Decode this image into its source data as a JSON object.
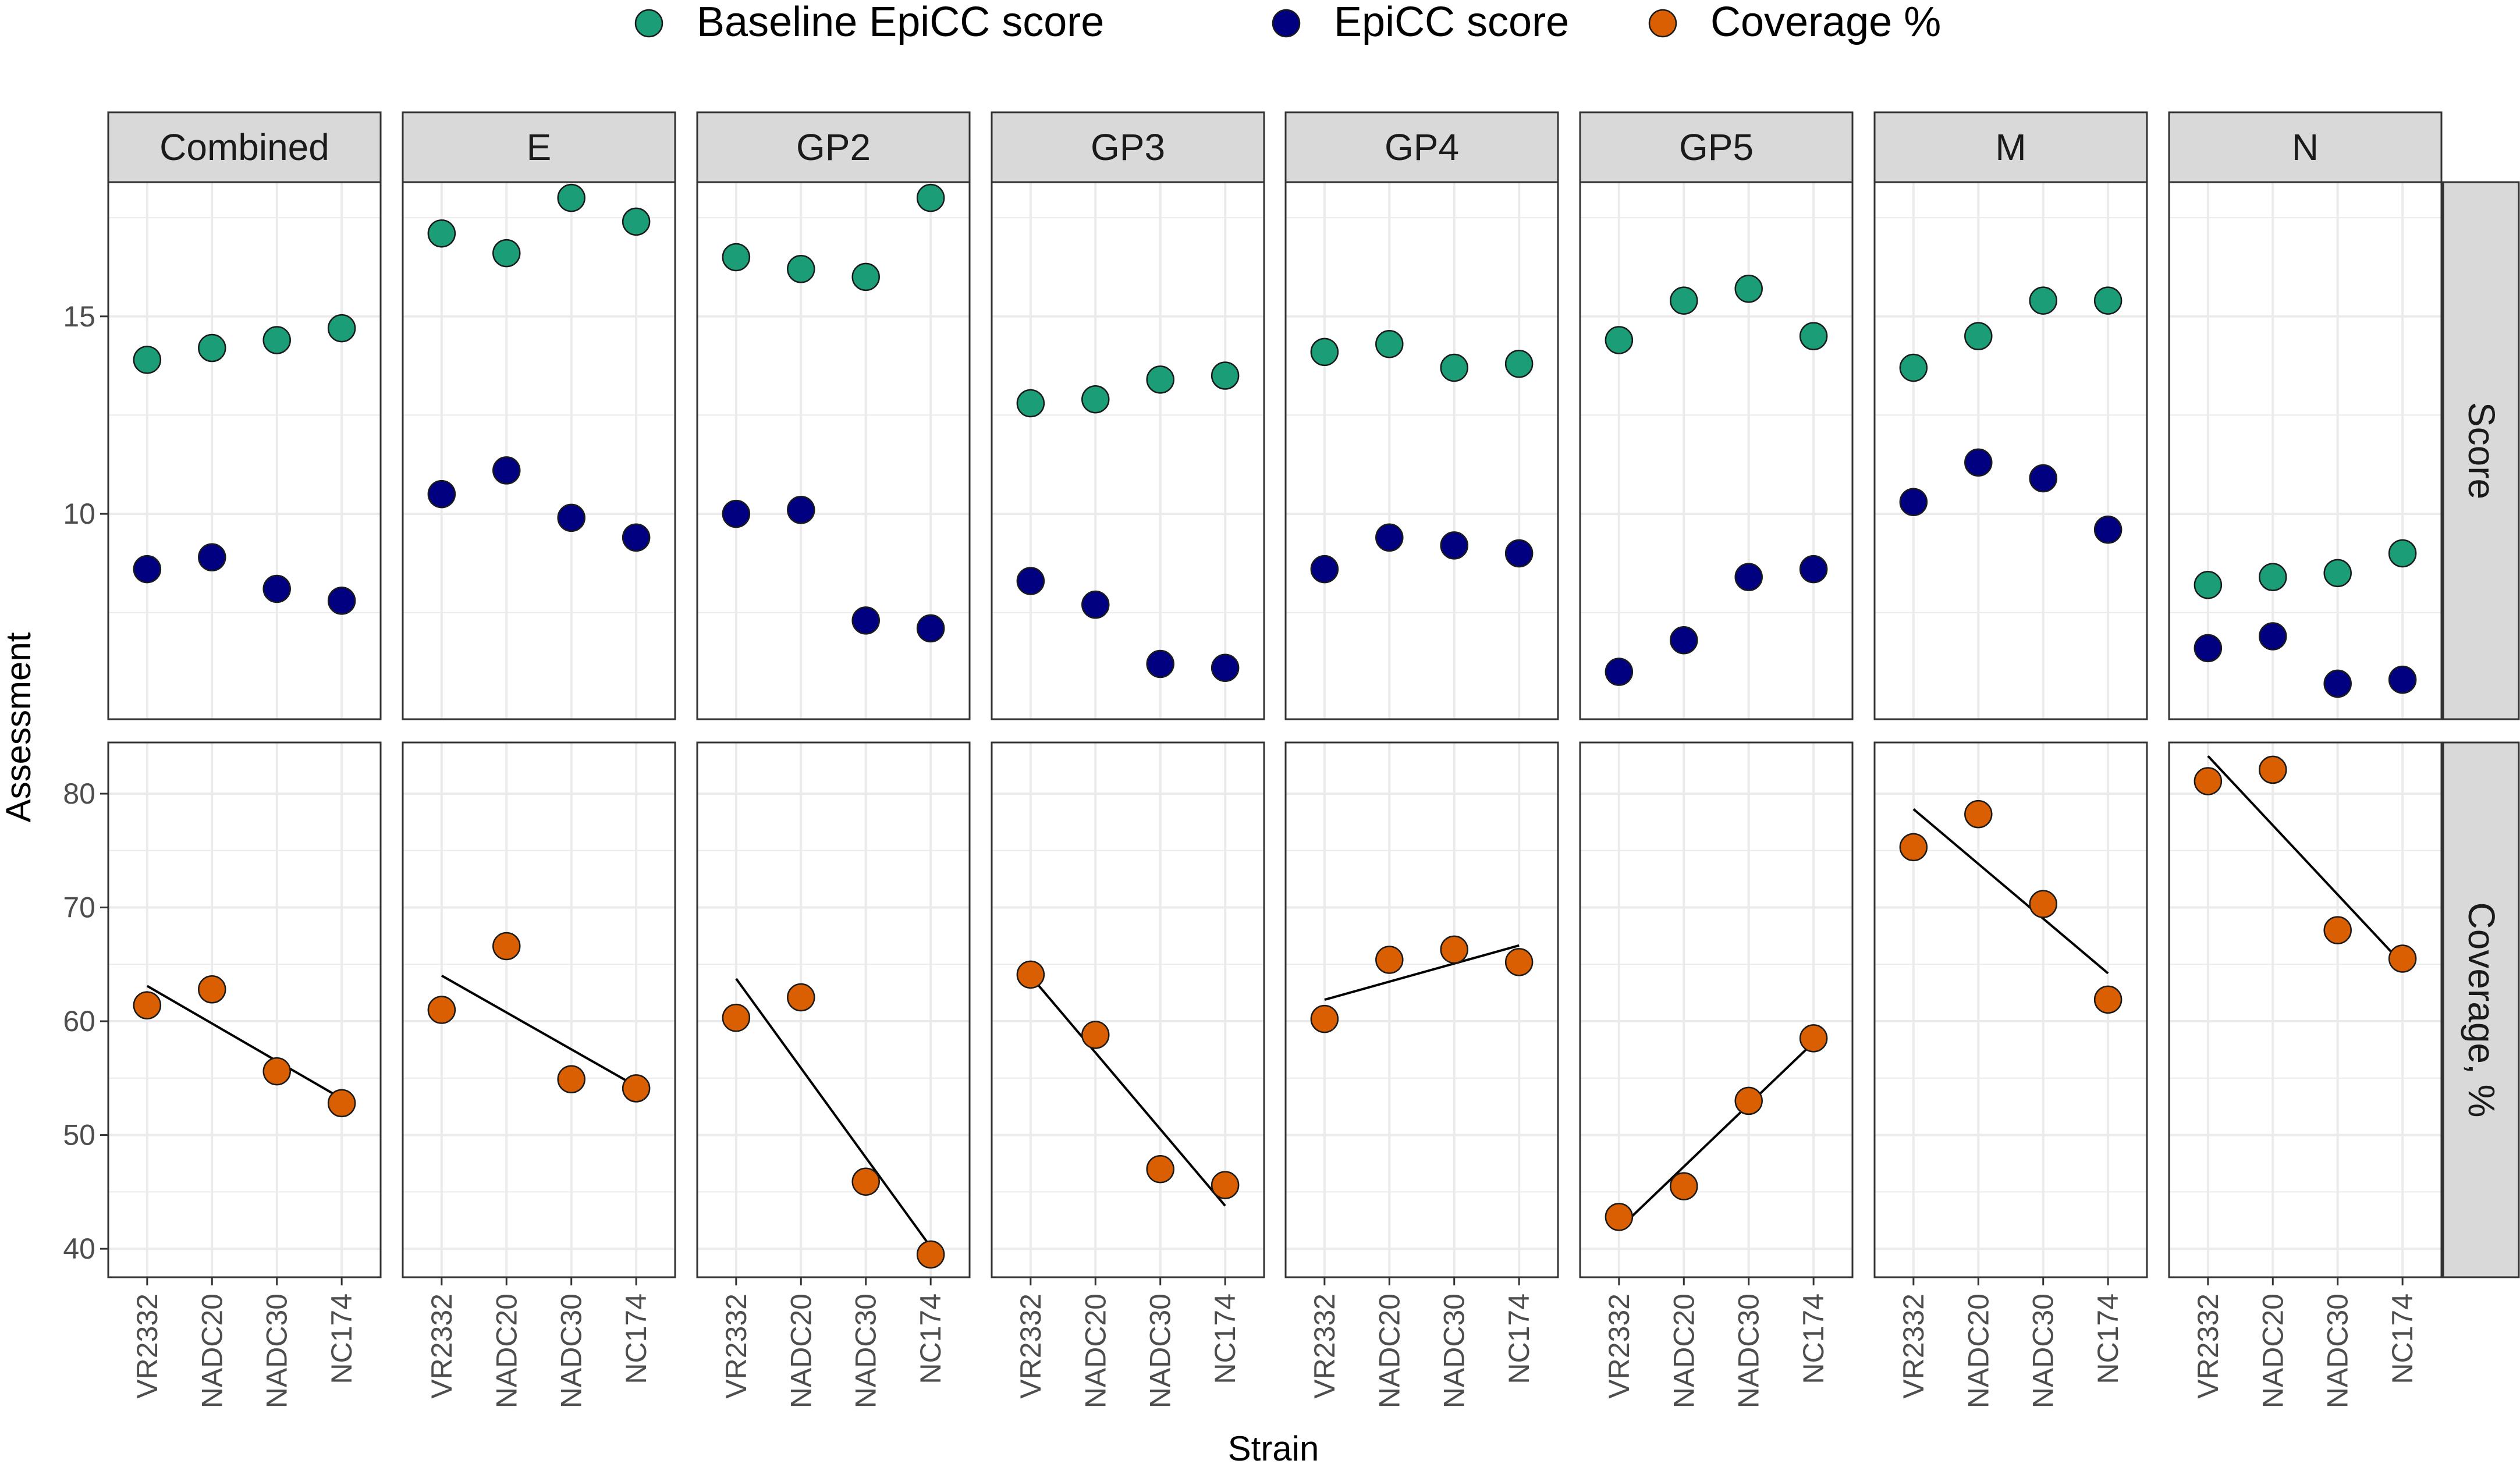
{
  "chart_data": {
    "type": "scatter",
    "xlabel": "Strain",
    "ylabel": "Assessment",
    "categories": [
      "VR2332",
      "NADC20",
      "NADC30",
      "NC174"
    ],
    "colors": {
      "baseline": "#1b9e77",
      "epicc": "#000080",
      "coverage": "#d95f02",
      "strip_fill": "#d9d9d9",
      "grid": "#ebebeb",
      "panel_border": "#333333"
    },
    "legend": {
      "position": "top",
      "entries": [
        {
          "key": "baseline",
          "label": "Baseline EpiCC score"
        },
        {
          "key": "epicc",
          "label": "EpiCC score"
        },
        {
          "key": "coverage",
          "label": "Coverage %"
        }
      ]
    },
    "facet_rows": [
      {
        "key": "score",
        "label": "Score",
        "ylim": [
          4.8,
          18.4
        ],
        "yticks": [
          10,
          15
        ],
        "ytick_labels": [
          "10",
          "15"
        ],
        "trend_line": false
      },
      {
        "key": "coverage",
        "label": "Coverage, %",
        "ylim": [
          37.5,
          84.5
        ],
        "yticks": [
          40,
          50,
          60,
          70,
          80
        ],
        "ytick_labels": [
          "40",
          "50",
          "60",
          "70",
          "80"
        ],
        "trend_line": true
      }
    ],
    "facets": [
      {
        "name": "Combined",
        "baseline": [
          13.9,
          14.2,
          14.4,
          14.7
        ],
        "epicc": [
          8.6,
          8.9,
          8.1,
          7.8
        ],
        "coverage": [
          61.4,
          62.8,
          55.6,
          52.8
        ]
      },
      {
        "name": "E",
        "baseline": [
          17.1,
          16.6,
          18.0,
          17.4
        ],
        "epicc": [
          10.5,
          11.1,
          9.9,
          9.4
        ],
        "coverage": [
          61.0,
          66.6,
          54.9,
          54.1
        ]
      },
      {
        "name": "GP2",
        "baseline": [
          16.5,
          16.2,
          16.0,
          18.0
        ],
        "epicc": [
          10.0,
          10.1,
          7.3,
          7.1
        ],
        "coverage": [
          60.3,
          62.1,
          45.9,
          39.5
        ]
      },
      {
        "name": "GP3",
        "baseline": [
          12.8,
          12.9,
          13.4,
          13.5
        ],
        "epicc": [
          8.3,
          7.7,
          6.2,
          6.1
        ],
        "coverage": [
          64.1,
          58.8,
          47.0,
          45.6
        ]
      },
      {
        "name": "GP4",
        "baseline": [
          14.1,
          14.3,
          13.7,
          13.8
        ],
        "epicc": [
          8.6,
          9.4,
          9.2,
          9.0
        ],
        "coverage": [
          60.2,
          65.4,
          66.3,
          65.2
        ]
      },
      {
        "name": "GP5",
        "baseline": [
          14.4,
          15.4,
          15.7,
          14.5
        ],
        "epicc": [
          6.0,
          6.8,
          8.4,
          8.6
        ],
        "coverage": [
          42.8,
          45.5,
          53.0,
          58.5
        ]
      },
      {
        "name": "M",
        "baseline": [
          13.7,
          14.5,
          15.4,
          15.4
        ],
        "epicc": [
          10.3,
          11.3,
          10.9,
          9.6
        ],
        "coverage": [
          75.3,
          78.2,
          70.3,
          61.9
        ]
      },
      {
        "name": "N",
        "baseline": [
          8.2,
          8.4,
          8.5,
          9.0
        ],
        "epicc": [
          6.6,
          6.9,
          5.7,
          5.8
        ],
        "coverage": [
          81.1,
          82.1,
          68.0,
          65.5
        ]
      }
    ]
  }
}
